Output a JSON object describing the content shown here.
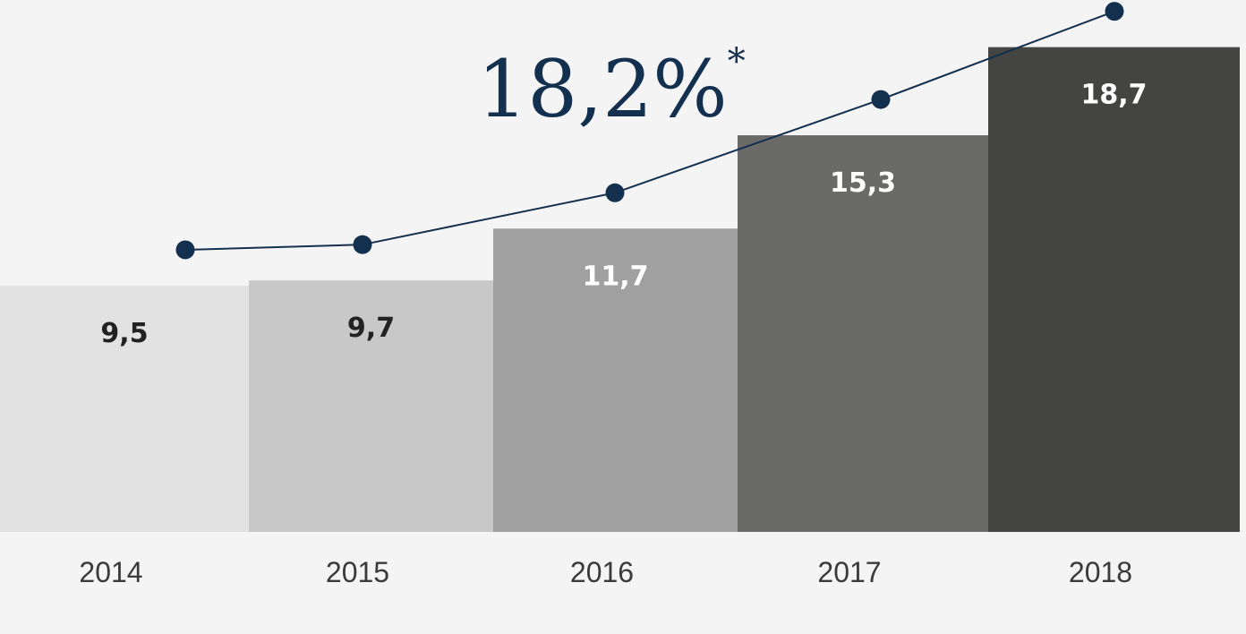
{
  "chart_data": {
    "type": "bar",
    "title": "",
    "xlabel": "",
    "ylabel": "",
    "categories": [
      "2014",
      "2015",
      "2016",
      "2017",
      "2018"
    ],
    "values": [
      9.5,
      9.7,
      11.7,
      15.3,
      18.7
    ],
    "value_labels": [
      "9,5",
      "9,7",
      "11,7",
      "15,3",
      "18,7"
    ],
    "line_overlay": {
      "description": "trend line with markers following the bar values",
      "values": [
        9.5,
        9.7,
        11.7,
        15.3,
        18.7
      ],
      "color": "#13304f"
    },
    "headline": {
      "text": "18,2%",
      "suffix": "*"
    },
    "bar_colors": [
      "#e2e2e2",
      "#c8c8c8",
      "#a0a0a0",
      "#6a6a69",
      "#444443"
    ],
    "label_colors": [
      "#222222",
      "#222222",
      "#ffffff",
      "#ffffff",
      "#ffffff"
    ],
    "ylim": [
      0,
      20
    ],
    "grid": false,
    "legend": "none"
  }
}
